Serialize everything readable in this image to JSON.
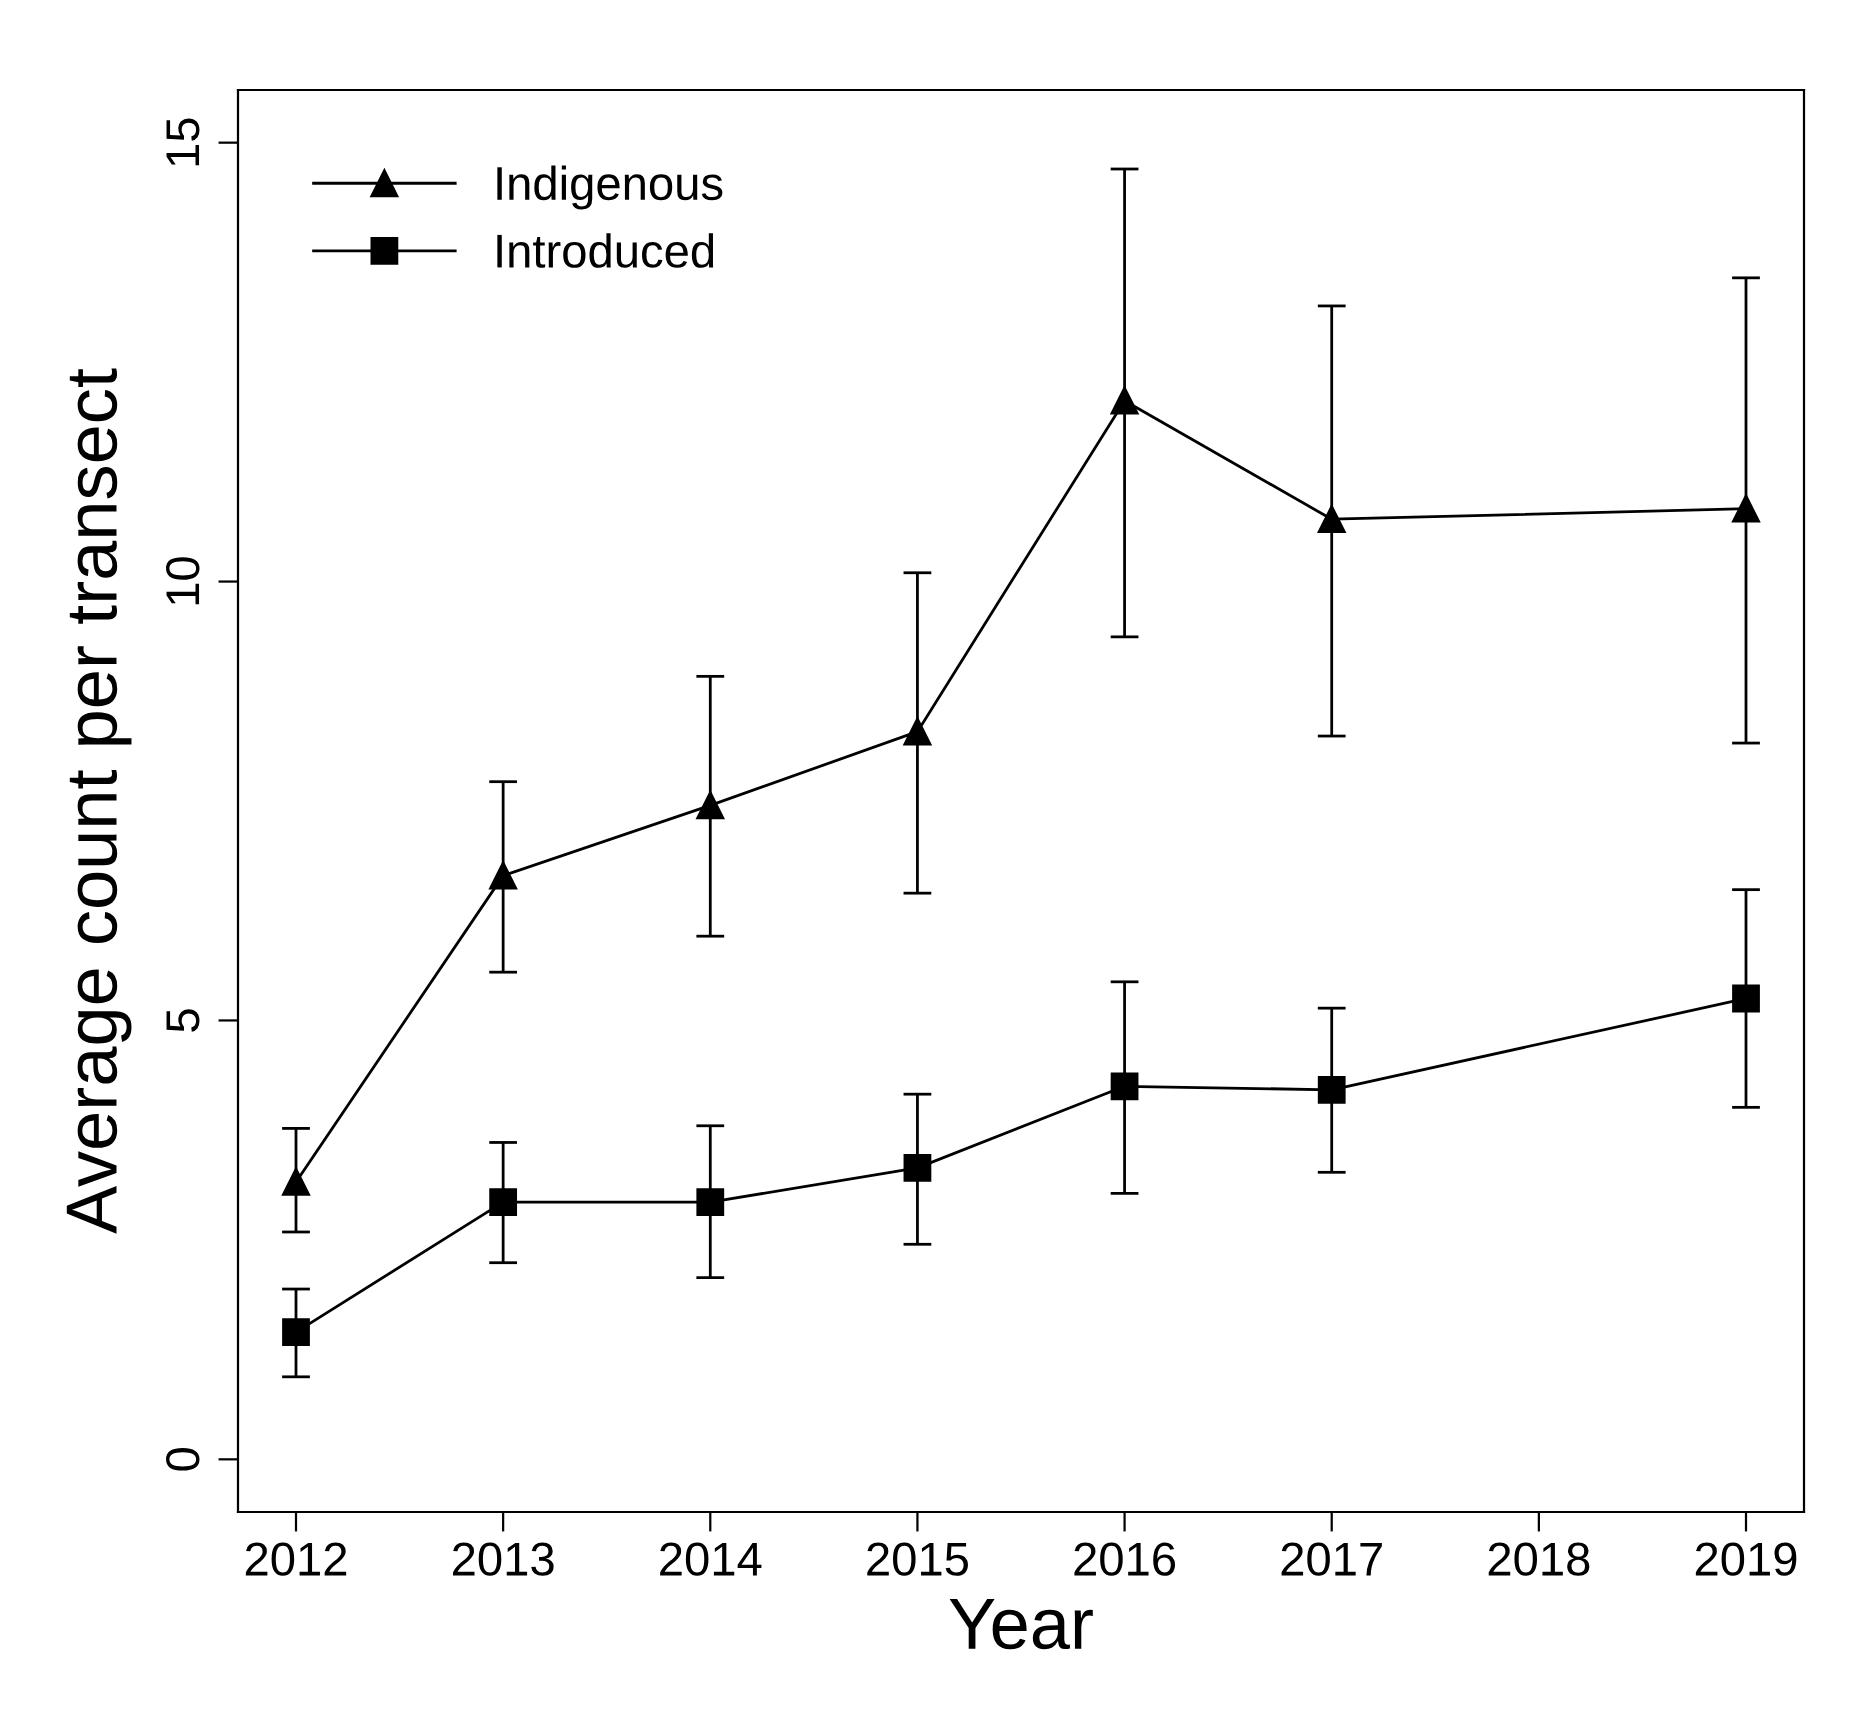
{
  "chart_data": {
    "type": "line",
    "xlabel": "Year",
    "ylabel": "Average count per transect",
    "x": [
      2012,
      2013,
      2014,
      2015,
      2016,
      2017,
      2019
    ],
    "xlim": [
      2011.72,
      2019.28
    ],
    "xticks": [
      2012,
      2013,
      2014,
      2015,
      2016,
      2017,
      2018,
      2019
    ],
    "ylim": [
      -0.6,
      15.6
    ],
    "yticks": [
      0,
      5,
      10,
      15
    ],
    "grid": false,
    "legend": "top left",
    "line_style": "solid",
    "series": [
      {
        "name": "Indigenous",
        "color": "#000000",
        "marker": "triangle",
        "values": [
          3.16,
          6.65,
          7.45,
          8.29,
          12.06,
          10.71,
          10.83
        ],
        "errors": [
          [
            2.59,
            3.77
          ],
          [
            5.55,
            7.72
          ],
          [
            5.96,
            8.92
          ],
          [
            6.45,
            10.1
          ],
          [
            9.37,
            14.7
          ],
          [
            8.24,
            13.14
          ],
          [
            8.16,
            13.46
          ]
        ]
      },
      {
        "name": "Introduced",
        "color": "#000000",
        "marker": "square",
        "values": [
          1.45,
          2.93,
          2.93,
          3.32,
          4.25,
          4.21,
          5.25
        ],
        "errors": [
          [
            0.94,
            1.94
          ],
          [
            2.24,
            3.61
          ],
          [
            2.07,
            3.8
          ],
          [
            2.45,
            4.16
          ],
          [
            3.03,
            5.44
          ],
          [
            3.27,
            5.14
          ],
          [
            4.01,
            6.49
          ]
        ]
      }
    ]
  }
}
